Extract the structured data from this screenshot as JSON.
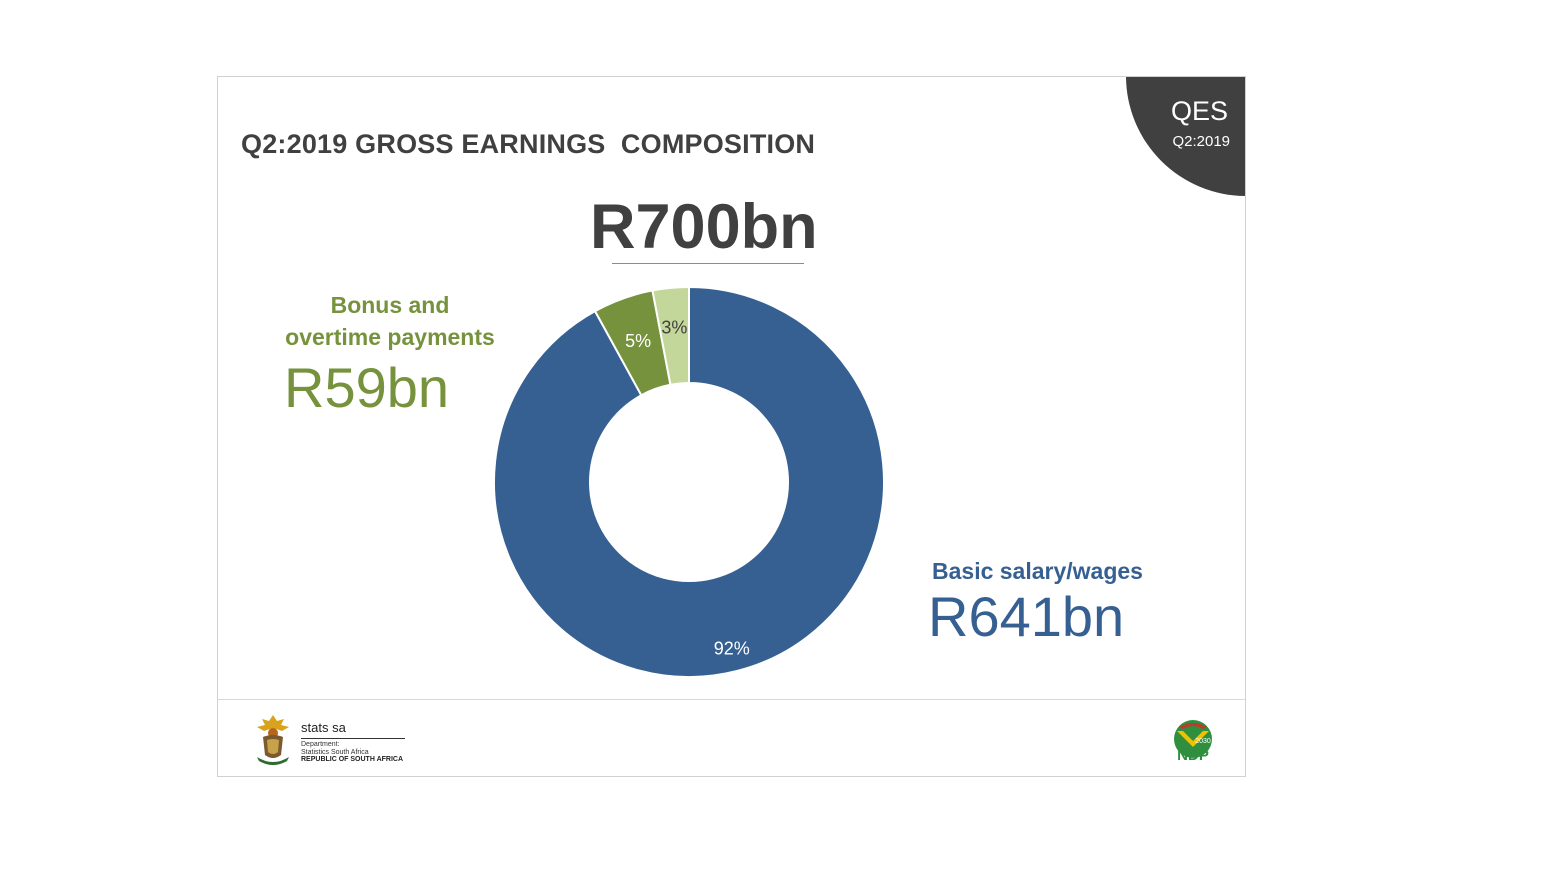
{
  "badge": {
    "title": "QES",
    "subtitle": "Q2:2019"
  },
  "slide_title": "Q2:2019 GROSS EARNINGS  COMPOSITION",
  "total": "R700bn",
  "bonus": {
    "label_line1": "Bonus and",
    "label_line2": "overtime payments",
    "value": "R59bn"
  },
  "basic": {
    "label": "Basic salary/wages",
    "value": "R641bn"
  },
  "footer": {
    "stats_name": "stats sa",
    "dept_line1": "Department:",
    "dept_line2": "Statistics South Africa",
    "country": "REPUBLIC OF SOUTH AFRICA",
    "ndp_year": "2030",
    "ndp_label": "NDP"
  },
  "colors": {
    "basic": "#366092",
    "bonus": "#76923c",
    "other": "#c4d79b",
    "text_dark": "#404040"
  },
  "chart_data": {
    "type": "pie",
    "donut": true,
    "categories": [
      "Basic salary/wages",
      "Bonus and overtime payments",
      ""
    ],
    "values": [
      92,
      5,
      3
    ],
    "data_labels": [
      "92%",
      "5%",
      "3%"
    ],
    "unit": "%"
  }
}
